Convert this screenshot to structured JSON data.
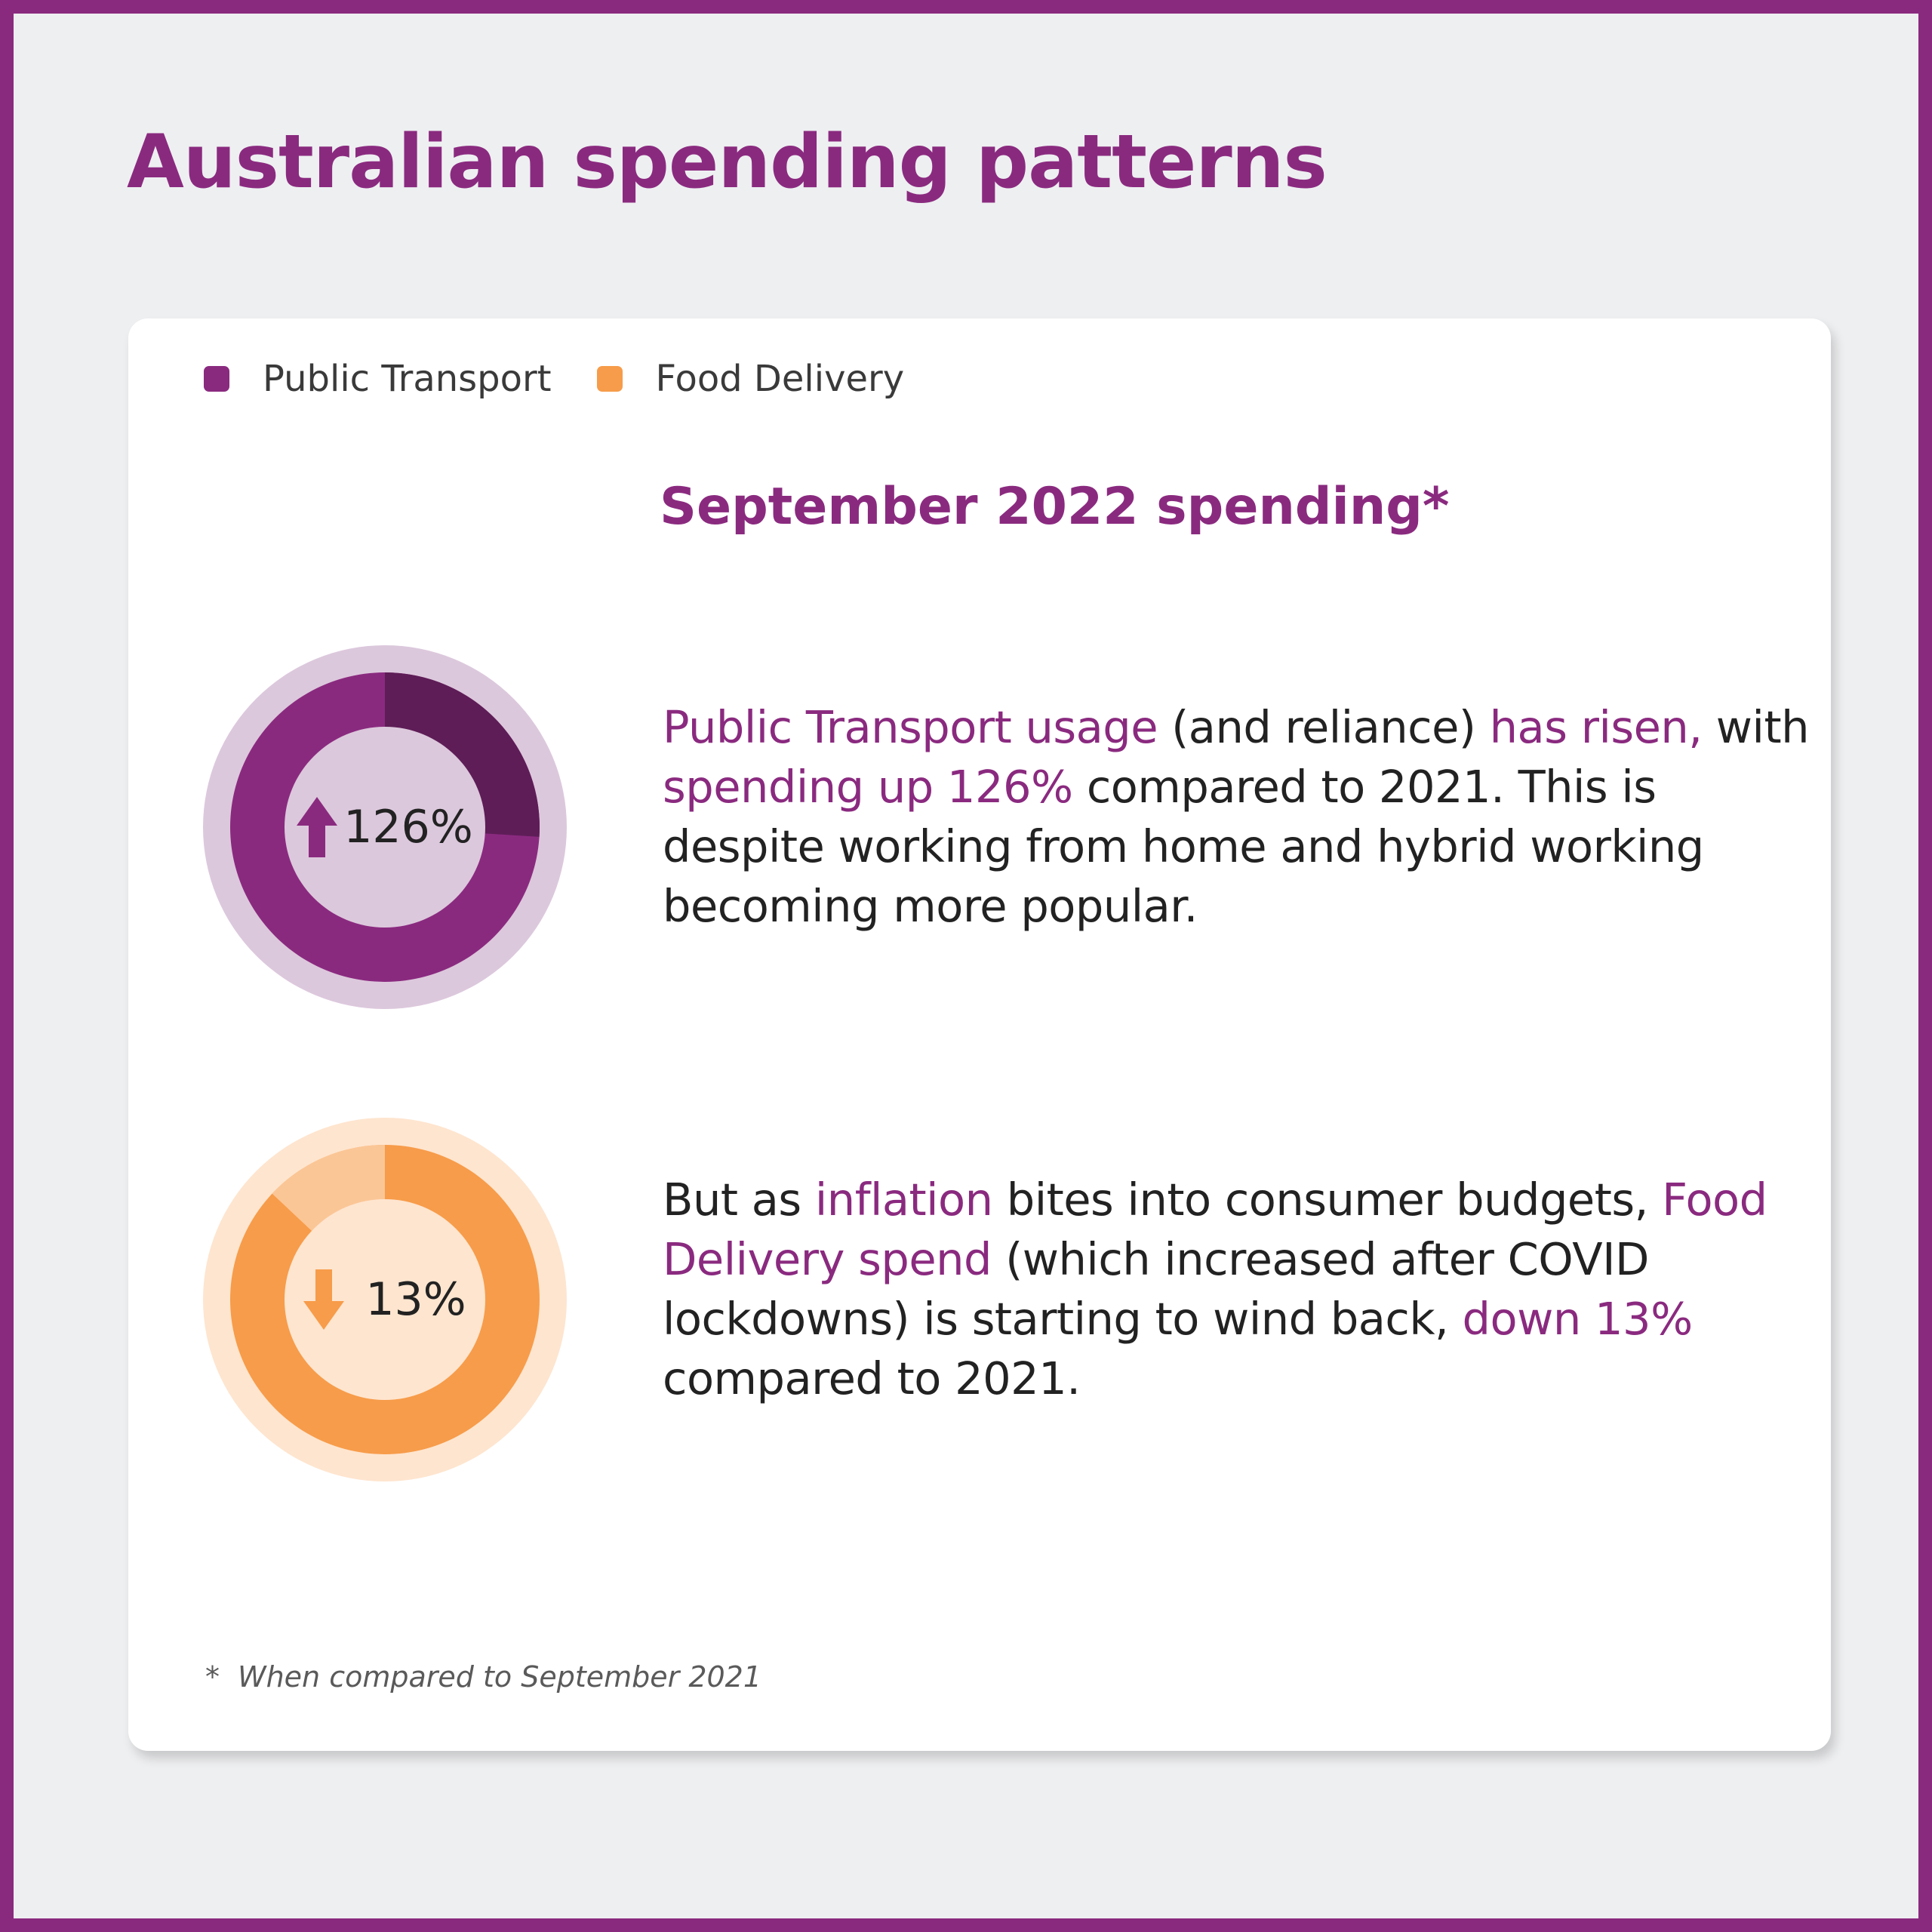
{
  "title": "Australian spending patterns",
  "colors": {
    "accent": "#8a2a7f",
    "accent_dark": "#5e1d57",
    "accent_light": "#dcc8dc",
    "orange": "#f79c4a",
    "orange_light": "#fbc696",
    "orange_pale": "#fee5cf",
    "background": "#eeeff1"
  },
  "legend": [
    {
      "label": "Public Transport",
      "color": "#8a2a7f"
    },
    {
      "label": "Food Delivery",
      "color": "#f79c4a"
    }
  ],
  "subtitle": "September 2022 spending*",
  "chart_data": [
    {
      "type": "pie",
      "series_name": "Public Transport",
      "change_label": "126%",
      "direction": "up",
      "change_percent": 126,
      "colors": {
        "ring": "#8a2a7f",
        "highlight": "#5e1d57",
        "halo": "#dcc8dc",
        "arrow": "#8a2a7f"
      }
    },
    {
      "type": "pie",
      "series_name": "Food Delivery",
      "change_label": "13%",
      "direction": "down",
      "change_percent": 13,
      "colors": {
        "ring": "#f79c4a",
        "highlight": "#fbc696",
        "halo": "#fee5cf",
        "arrow": "#f79c4a"
      }
    }
  ],
  "paragraphs": {
    "transport": {
      "part1": "Public Transport usage",
      "part2": " (and reliance) ",
      "part3": "has risen,",
      "part4": " with ",
      "part5": "spending up 126%",
      "part6": " compared to 2021. This is despite working from home and hybrid working becoming more popular."
    },
    "food": {
      "part1": "But as ",
      "part2": "inflation",
      "part3": " bites into consumer budgets, ",
      "part4": "Food Delivery spend",
      "part5": " (which increased after COVID lockdowns) is starting to wind back, ",
      "part6": "down 13%",
      "part7": " compared to 2021."
    }
  },
  "footnote": {
    "marker": "*",
    "text": "When compared to September 2021"
  }
}
